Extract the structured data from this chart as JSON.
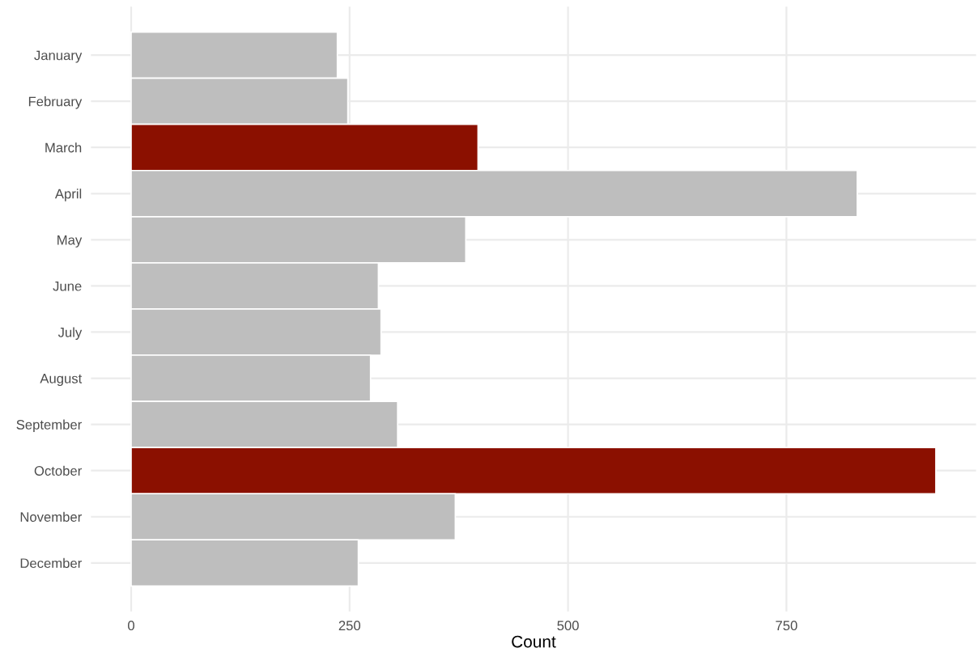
{
  "chart_data": {
    "type": "bar",
    "orientation": "horizontal",
    "xlabel": "Count",
    "categories": [
      "January",
      "February",
      "March",
      "April",
      "May",
      "June",
      "July",
      "August",
      "September",
      "October",
      "November",
      "December"
    ],
    "values": [
      236,
      248,
      397,
      831,
      383,
      283,
      286,
      274,
      305,
      921,
      371,
      260
    ],
    "colors": [
      "#bebebe",
      "#bebebe",
      "#8b1000",
      "#bebebe",
      "#bebebe",
      "#bebebe",
      "#bebebe",
      "#bebebe",
      "#bebebe",
      "#8b1000",
      "#bebebe",
      "#bebebe"
    ],
    "xlim": [
      -46,
      967
    ],
    "xticks": [
      0,
      250,
      500,
      750
    ],
    "grid": true
  }
}
